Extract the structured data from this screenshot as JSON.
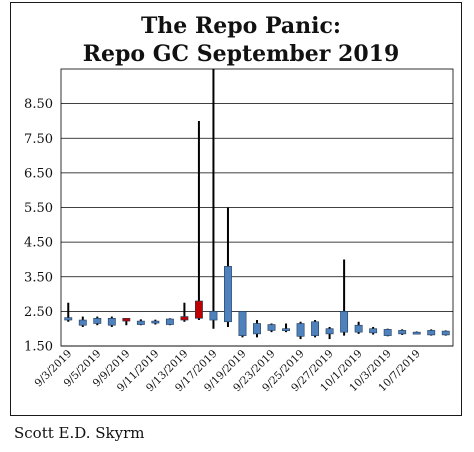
{
  "credit": "Scott E.D. Skyrm",
  "colors": {
    "up": "#4f81bd",
    "down": "#c00000",
    "border": "#1a1a1a",
    "grid": "#000000"
  },
  "chart_data": {
    "type": "candlestick",
    "title": [
      "The Repo Panic:",
      "Repo GC September 2019"
    ],
    "xlabel": "",
    "ylabel": "",
    "ylim": [
      1.5,
      9.5
    ],
    "yticks": [
      1.5,
      2.5,
      3.5,
      4.5,
      5.5,
      6.5,
      7.5,
      8.5
    ],
    "ytick_labels": [
      "1.50",
      "2.50",
      "3.50",
      "4.50",
      "5.50",
      "6.50",
      "7.50",
      "8.50"
    ],
    "grid": true,
    "xtick_labels": [
      "9/3/2019",
      "9/5/2019",
      "9/9/2019",
      "9/11/2019",
      "9/13/2019",
      "9/17/2019",
      "9/19/2019",
      "9/23/2019",
      "9/25/2019",
      "9/27/2019",
      "10/1/2019",
      "10/3/2019",
      "10/7/2019"
    ],
    "series": [
      {
        "date": "9/3/2019",
        "open": 2.25,
        "high": 2.75,
        "low": 2.2,
        "close": 2.32
      },
      {
        "date": "9/4/2019",
        "open": 2.1,
        "high": 2.35,
        "low": 2.05,
        "close": 2.25
      },
      {
        "date": "9/5/2019",
        "open": 2.15,
        "high": 2.35,
        "low": 2.1,
        "close": 2.3
      },
      {
        "date": "9/6/2019",
        "open": 2.1,
        "high": 2.35,
        "low": 2.05,
        "close": 2.3
      },
      {
        "date": "9/9/2019",
        "open": 2.3,
        "high": 2.3,
        "low": 2.1,
        "close": 2.22
      },
      {
        "date": "9/10/2019",
        "open": 2.12,
        "high": 2.27,
        "low": 2.1,
        "close": 2.22
      },
      {
        "date": "9/11/2019",
        "open": 2.18,
        "high": 2.26,
        "low": 2.12,
        "close": 2.22
      },
      {
        "date": "9/12/2019",
        "open": 2.12,
        "high": 2.3,
        "low": 2.1,
        "close": 2.28
      },
      {
        "date": "9/13/2019",
        "open": 2.35,
        "high": 2.75,
        "low": 2.2,
        "close": 2.25
      },
      {
        "date": "9/16/2019",
        "open": 2.8,
        "high": 8.0,
        "low": 2.25,
        "close": 2.3
      },
      {
        "date": "9/17/2019",
        "open": 2.25,
        "high": 9.5,
        "low": 2.0,
        "close": 2.5
      },
      {
        "date": "9/18/2019",
        "open": 2.2,
        "high": 5.5,
        "low": 2.05,
        "close": 3.8
      },
      {
        "date": "9/19/2019",
        "open": 1.8,
        "high": 2.5,
        "low": 1.75,
        "close": 2.5
      },
      {
        "date": "9/20/2019",
        "open": 1.85,
        "high": 2.25,
        "low": 1.75,
        "close": 2.15
      },
      {
        "date": "9/23/2019",
        "open": 1.95,
        "high": 2.15,
        "low": 1.9,
        "close": 2.12
      },
      {
        "date": "9/24/2019",
        "open": 1.95,
        "high": 2.15,
        "low": 1.9,
        "close": 2.0
      },
      {
        "date": "9/25/2019",
        "open": 1.78,
        "high": 2.2,
        "low": 1.7,
        "close": 2.15
      },
      {
        "date": "9/26/2019",
        "open": 1.8,
        "high": 2.25,
        "low": 1.75,
        "close": 2.2
      },
      {
        "date": "9/27/2019",
        "open": 1.85,
        "high": 2.05,
        "low": 1.7,
        "close": 2.0
      },
      {
        "date": "9/30/2019",
        "open": 1.9,
        "high": 4.0,
        "low": 1.8,
        "close": 2.5
      },
      {
        "date": "10/1/2019",
        "open": 1.9,
        "high": 2.2,
        "low": 1.85,
        "close": 2.1
      },
      {
        "date": "10/2/2019",
        "open": 1.88,
        "high": 2.05,
        "low": 1.83,
        "close": 2.0
      },
      {
        "date": "10/3/2019",
        "open": 1.8,
        "high": 2.0,
        "low": 1.78,
        "close": 1.98
      },
      {
        "date": "10/4/2019",
        "open": 1.85,
        "high": 1.98,
        "low": 1.82,
        "close": 1.95
      },
      {
        "date": "10/7/2019",
        "open": 1.88,
        "high": 1.92,
        "low": 1.85,
        "close": 1.9
      },
      {
        "date": "10/8/2019",
        "open": 1.82,
        "high": 1.98,
        "low": 1.8,
        "close": 1.95
      },
      {
        "date": "10/9/2019",
        "open": 1.82,
        "high": 1.95,
        "low": 1.8,
        "close": 1.93
      }
    ]
  }
}
